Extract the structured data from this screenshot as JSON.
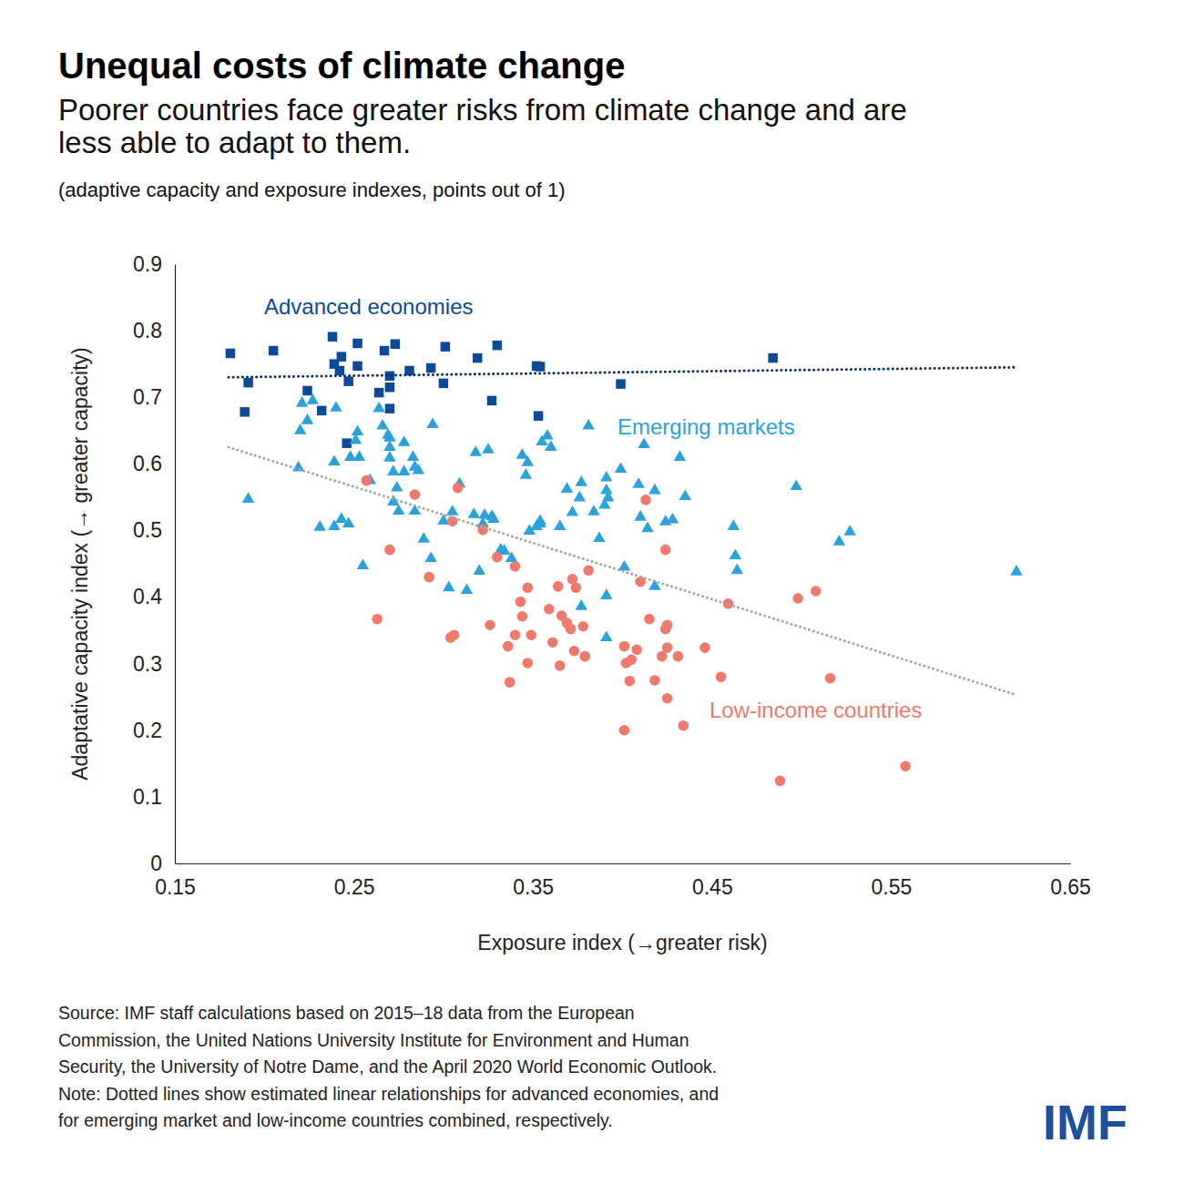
{
  "chart_data": {
    "type": "scatter",
    "title": "Unequal costs of climate change",
    "subtitle": [
      "Poorer countries face greater risks from climate change and are",
      "less able to adapt to them."
    ],
    "units": "(adaptive capacity and exposure indexes, points out of 1)",
    "x_label": "Exposure index (→greater risk)",
    "y_label": "Adaptative capacity index (→ greater capacity)",
    "xlim": [
      0.15,
      0.65
    ],
    "xticks": [
      0.15,
      0.25,
      0.35,
      0.45,
      0.55,
      0.65
    ],
    "ylim": [
      0,
      0.9
    ],
    "yticks": [
      0,
      0.1,
      0.2,
      0.3,
      0.4,
      0.5,
      0.6,
      0.7,
      0.8,
      0.9
    ],
    "grid": false,
    "series": [
      {
        "name": "Advanced economies",
        "color": "#0a4a9a",
        "marker": "square",
        "x": [
          0.181,
          0.205,
          0.191,
          0.189,
          0.224,
          0.238,
          0.239,
          0.243,
          0.242,
          0.252,
          0.252,
          0.247,
          0.232,
          0.246,
          0.264,
          0.267,
          0.273,
          0.27,
          0.27,
          0.27,
          0.281,
          0.293,
          0.301,
          0.3,
          0.319,
          0.327,
          0.33,
          0.352,
          0.354,
          0.353,
          0.399,
          0.484
        ],
        "values": [
          0.766,
          0.77,
          0.722,
          0.678,
          0.71,
          0.791,
          0.75,
          0.761,
          0.74,
          0.781,
          0.747,
          0.724,
          0.68,
          0.631,
          0.707,
          0.77,
          0.78,
          0.732,
          0.715,
          0.683,
          0.74,
          0.744,
          0.776,
          0.721,
          0.759,
          0.695,
          0.778,
          0.747,
          0.746,
          0.672,
          0.72,
          0.759
        ]
      },
      {
        "name": "Emerging markets",
        "color": "#29a3dd",
        "marker": "triangle",
        "x": [
          0.191,
          0.219,
          0.221,
          0.224,
          0.22,
          0.227,
          0.231,
          0.239,
          0.24,
          0.239,
          0.243,
          0.247,
          0.248,
          0.251,
          0.252,
          0.255,
          0.253,
          0.259,
          0.264,
          0.266,
          0.269,
          0.27,
          0.27,
          0.27,
          0.272,
          0.272,
          0.274,
          0.275,
          0.278,
          0.278,
          0.283,
          0.284,
          0.286,
          0.284,
          0.289,
          0.293,
          0.294,
          0.3,
          0.303,
          0.305,
          0.309,
          0.313,
          0.317,
          0.318,
          0.32,
          0.322,
          0.323,
          0.325,
          0.327,
          0.328,
          0.332,
          0.334,
          0.338,
          0.344,
          0.347,
          0.346,
          0.348,
          0.352,
          0.354,
          0.355,
          0.358,
          0.36,
          0.354,
          0.365,
          0.369,
          0.372,
          0.376,
          0.377,
          0.377,
          0.381,
          0.384,
          0.387,
          0.39,
          0.391,
          0.391,
          0.392,
          0.391,
          0.391,
          0.399,
          0.401,
          0.409,
          0.41,
          0.412,
          0.414,
          0.418,
          0.418,
          0.424,
          0.428,
          0.432,
          0.435,
          0.462,
          0.463,
          0.464,
          0.497,
          0.521,
          0.527,
          0.62
        ],
        "values": [
          0.547,
          0.594,
          0.691,
          0.665,
          0.65,
          0.695,
          0.505,
          0.603,
          0.684,
          0.506,
          0.517,
          0.51,
          0.61,
          0.635,
          0.648,
          0.447,
          0.61,
          0.575,
          0.683,
          0.657,
          0.643,
          0.625,
          0.639,
          0.609,
          0.588,
          0.543,
          0.564,
          0.529,
          0.632,
          0.588,
          0.61,
          0.595,
          0.59,
          0.529,
          0.487,
          0.458,
          0.659,
          0.514,
          0.414,
          0.528,
          0.57,
          0.41,
          0.524,
          0.617,
          0.439,
          0.51,
          0.523,
          0.621,
          0.521,
          0.517,
          0.471,
          0.469,
          0.458,
          0.613,
          0.602,
          0.583,
          0.499,
          0.506,
          0.51,
          0.633,
          0.642,
          0.625,
          0.514,
          0.506,
          0.562,
          0.527,
          0.549,
          0.572,
          0.386,
          0.657,
          0.528,
          0.488,
          0.538,
          0.56,
          0.579,
          0.549,
          0.339,
          0.402,
          0.592,
          0.445,
          0.569,
          0.52,
          0.629,
          0.503,
          0.56,
          0.416,
          0.513,
          0.516,
          0.61,
          0.551,
          0.506,
          0.462,
          0.44,
          0.566,
          0.483,
          0.498,
          0.438
        ]
      },
      {
        "name": "Low-income countries",
        "color": "#f0796b",
        "marker": "circle",
        "x": [
          0.257,
          0.263,
          0.27,
          0.284,
          0.292,
          0.304,
          0.306,
          0.305,
          0.308,
          0.322,
          0.326,
          0.33,
          0.336,
          0.337,
          0.34,
          0.34,
          0.343,
          0.344,
          0.347,
          0.347,
          0.349,
          0.359,
          0.361,
          0.364,
          0.365,
          0.366,
          0.369,
          0.371,
          0.372,
          0.373,
          0.374,
          0.378,
          0.379,
          0.381,
          0.401,
          0.401,
          0.402,
          0.404,
          0.405,
          0.408,
          0.41,
          0.413,
          0.415,
          0.418,
          0.422,
          0.424,
          0.424,
          0.425,
          0.425,
          0.425,
          0.431,
          0.434,
          0.446,
          0.455,
          0.459,
          0.488,
          0.498,
          0.508,
          0.516,
          0.558
        ],
        "values": [
          0.575,
          0.367,
          0.471,
          0.554,
          0.43,
          0.339,
          0.343,
          0.514,
          0.564,
          0.501,
          0.358,
          0.46,
          0.326,
          0.272,
          0.446,
          0.343,
          0.393,
          0.371,
          0.301,
          0.414,
          0.343,
          0.382,
          0.332,
          0.416,
          0.297,
          0.372,
          0.361,
          0.352,
          0.427,
          0.319,
          0.414,
          0.356,
          0.311,
          0.44,
          0.326,
          0.2,
          0.301,
          0.274,
          0.306,
          0.321,
          0.423,
          0.546,
          0.367,
          0.275,
          0.311,
          0.352,
          0.471,
          0.248,
          0.324,
          0.358,
          0.311,
          0.207,
          0.324,
          0.28,
          0.39,
          0.124,
          0.398,
          0.409,
          0.278,
          0.146
        ]
      }
    ],
    "trend_lines": [
      {
        "color": "#0e2a66",
        "line_style": "dotted",
        "x": [
          0.18,
          0.62
        ],
        "values": [
          0.73,
          0.745
        ]
      },
      {
        "color": "#a8a8a8",
        "line_style": "dotted",
        "x": [
          0.18,
          0.62
        ],
        "values": [
          0.625,
          0.253
        ]
      }
    ],
    "source": [
      "Source: IMF staff calculations based on 2015–18 data from the European",
      "Commission, the United Nations University Institute for Environment and Human",
      "Security, the University of Notre Dame, and the April 2020 World Economic Outlook.",
      "Note: Dotted lines show estimated linear relationships for advanced economies, and",
      "for emerging market and low-income countries combined, respectively."
    ],
    "logo": "IMF"
  }
}
